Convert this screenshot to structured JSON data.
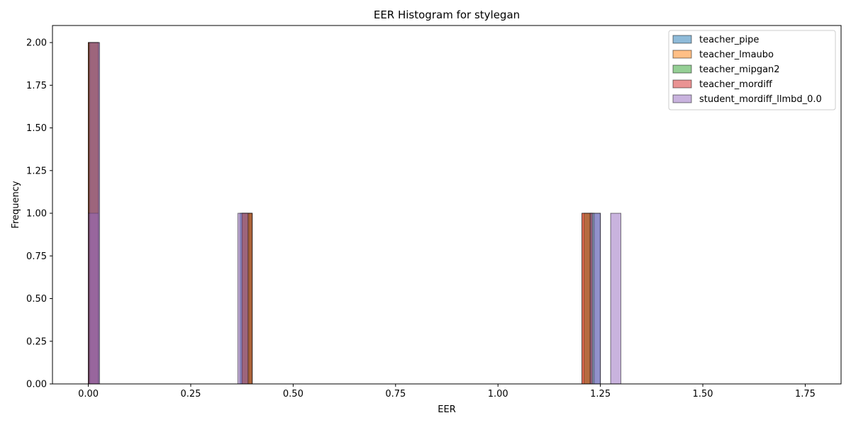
{
  "chart_data": {
    "type": "bar",
    "title": "EER Histogram for stylegan",
    "xlabel": "EER",
    "ylabel": "Frequency",
    "xlim": [
      -0.0875,
      1.8375
    ],
    "ylim": [
      0,
      2.1
    ],
    "xticks": [
      "0.00",
      "0.25",
      "0.50",
      "0.75",
      "1.00",
      "1.25",
      "1.50",
      "1.75"
    ],
    "yticks": [
      "0.00",
      "0.25",
      "0.50",
      "0.75",
      "1.00",
      "1.25",
      "1.50",
      "1.75",
      "2.00"
    ],
    "bin_width": 0.025,
    "legend_position": "upper right",
    "series": [
      {
        "name": "teacher_pipe",
        "color": "#1f77b4",
        "bins": [
          {
            "x0": 0.0,
            "count": 2
          },
          {
            "x0": 0.37,
            "count": 1
          },
          {
            "x0": 1.225,
            "count": 1
          }
        ]
      },
      {
        "name": "teacher_lmaubo",
        "color": "#ff7f0e",
        "bins": [
          {
            "x0": 0.0,
            "count": 2
          },
          {
            "x0": 0.375,
            "count": 1
          },
          {
            "x0": 1.205,
            "count": 1
          }
        ]
      },
      {
        "name": "teacher_mipgan2",
        "color": "#2ca02c",
        "bins": [
          {
            "x0": 0.0,
            "count": 2
          },
          {
            "x0": 0.375,
            "count": 1
          },
          {
            "x0": 1.21,
            "count": 1
          }
        ]
      },
      {
        "name": "teacher_mordiff",
        "color": "#d62728",
        "bins": [
          {
            "x0": 0.0,
            "count": 2
          },
          {
            "x0": 0.375,
            "count": 1
          },
          {
            "x0": 1.205,
            "count": 1
          }
        ]
      },
      {
        "name": "student_mordiff_llmbd_0.0",
        "color": "#9467bd",
        "bins": [
          {
            "x0": 0.0,
            "count": 1
          },
          {
            "x0": 0.0025,
            "count": 2
          },
          {
            "x0": 0.365,
            "count": 1
          },
          {
            "x0": 1.225,
            "count": 1
          },
          {
            "x0": 1.275,
            "count": 1
          }
        ]
      }
    ]
  }
}
